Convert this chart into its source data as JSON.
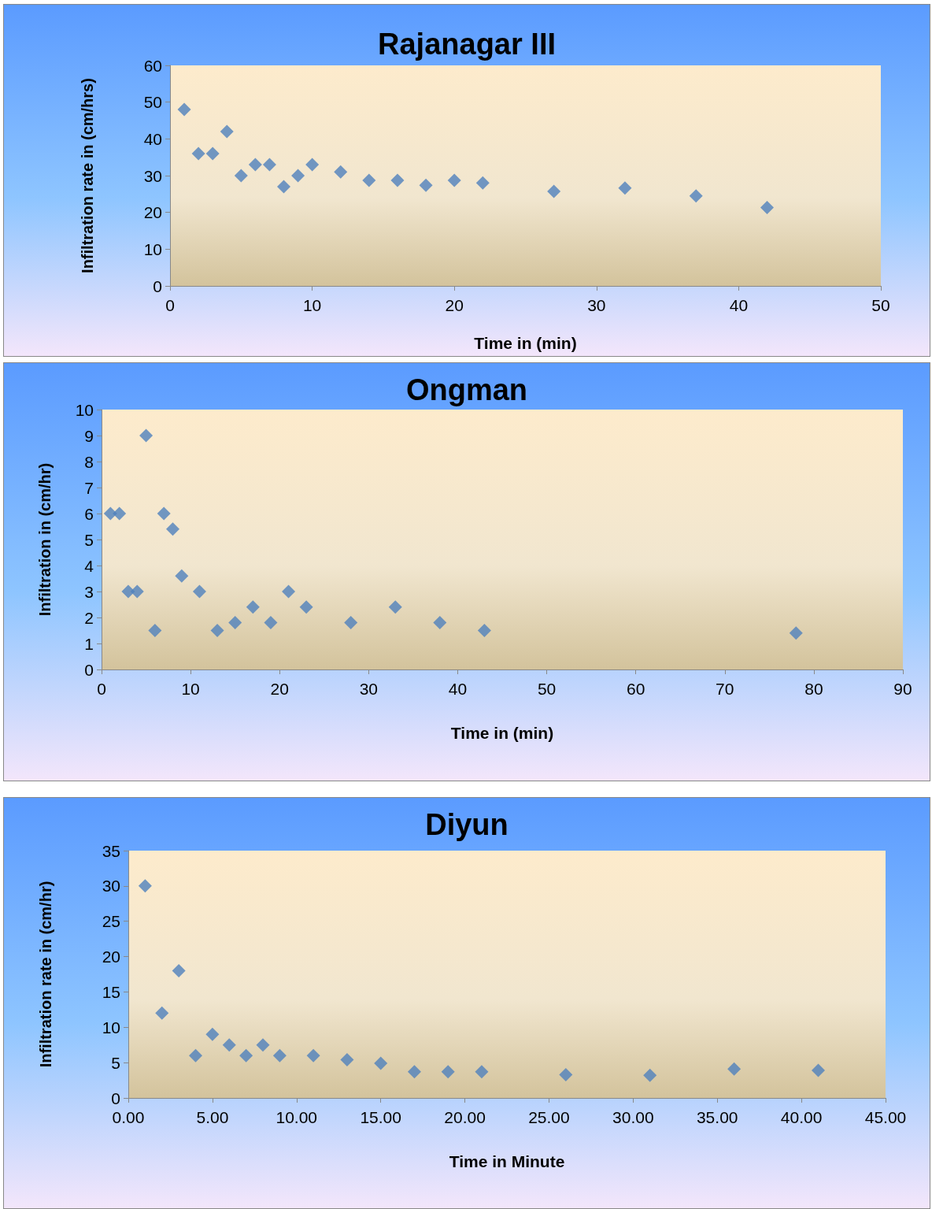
{
  "chart_data": [
    {
      "type": "scatter",
      "title": "Rajanagar III",
      "xlabel": "Time in (min)",
      "ylabel": "Infiltration rate in (cm/hrs)",
      "marker": "diamond",
      "xlim": [
        0,
        50
      ],
      "xticks": [
        0,
        10,
        20,
        30,
        40,
        50
      ],
      "ylim": [
        0,
        60
      ],
      "yticks": [
        0,
        10,
        20,
        30,
        40,
        50,
        60
      ],
      "series": [
        {
          "color": "#4f81bd",
          "x": [
            1,
            2,
            3,
            4,
            5,
            6,
            7,
            8,
            9,
            10,
            12,
            14,
            16,
            18,
            20,
            22,
            27,
            32,
            37,
            42
          ],
          "values": [
            48,
            36,
            36,
            42,
            30,
            33,
            33,
            27,
            30,
            33,
            31,
            28.7,
            28.7,
            27.4,
            28.7,
            28,
            25.7,
            26.6,
            24.5,
            21.3
          ]
        }
      ]
    },
    {
      "type": "scatter",
      "title": "Ongman",
      "xlabel": "Time in (min)",
      "ylabel": "Infiltration in (cm/hr)",
      "marker": "diamond",
      "xlim": [
        0,
        90
      ],
      "xticks": [
        0,
        10,
        20,
        30,
        40,
        50,
        60,
        70,
        80,
        90
      ],
      "ylim": [
        0,
        10
      ],
      "yticks": [
        0,
        1,
        2,
        3,
        4,
        5,
        6,
        7,
        8,
        9,
        10
      ],
      "series": [
        {
          "color": "#4f81bd",
          "x": [
            1,
            2,
            3,
            4,
            5,
            6,
            7,
            8,
            9,
            11,
            13,
            15,
            17,
            19,
            21,
            23,
            28,
            33,
            38,
            43,
            78
          ],
          "values": [
            6,
            6,
            3,
            3,
            9,
            1.5,
            6,
            5.4,
            3.6,
            3,
            1.5,
            1.8,
            2.4,
            1.8,
            3,
            2.4,
            1.8,
            2.4,
            1.8,
            1.5,
            1.4
          ]
        }
      ]
    },
    {
      "type": "scatter",
      "title": "Diyun",
      "xlabel": "Time in Minute",
      "ylabel": "Infiltration rate in (cm/hr)",
      "marker": "diamond",
      "xlim": [
        0,
        45
      ],
      "xticks": [
        {
          "value": 0,
          "label": "0.00"
        },
        {
          "value": 5,
          "label": "5.00"
        },
        {
          "value": 10,
          "label": "10.00"
        },
        {
          "value": 15,
          "label": "15.00"
        },
        {
          "value": 20,
          "label": "20.00"
        },
        {
          "value": 25,
          "label": "25.00"
        },
        {
          "value": 30,
          "label": "30.00"
        },
        {
          "value": 35,
          "label": "35.00"
        },
        {
          "value": 40,
          "label": "40.00"
        },
        {
          "value": 45,
          "label": "45.00"
        }
      ],
      "ylim": [
        0,
        35
      ],
      "yticks": [
        0,
        5,
        10,
        15,
        20,
        25,
        30,
        35
      ],
      "series": [
        {
          "color": "#4f81bd",
          "x": [
            1,
            2,
            3,
            4,
            5,
            6,
            7,
            8,
            9,
            11,
            13,
            15,
            17,
            19,
            21,
            26,
            31,
            36,
            41
          ],
          "values": [
            30,
            12,
            18,
            6,
            9,
            7.5,
            6,
            7.5,
            6,
            6,
            5.4,
            4.9,
            3.7,
            3.7,
            3.7,
            3.3,
            3.2,
            4.1,
            3.9
          ]
        }
      ]
    }
  ]
}
